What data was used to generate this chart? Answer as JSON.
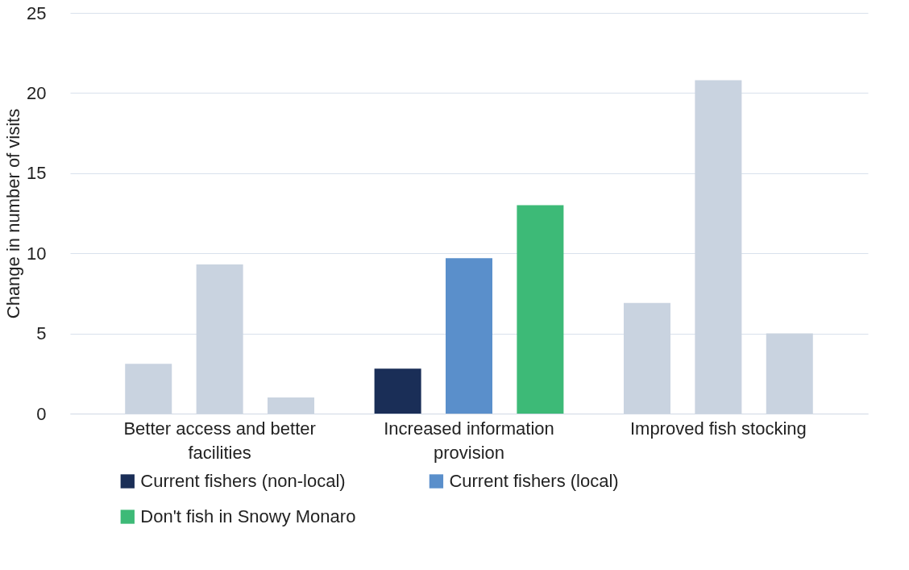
{
  "chart_data": {
    "type": "bar",
    "ylabel": "Change in number of visits",
    "categories": [
      "Better access and better facilities",
      "Increased information provision",
      "Improved fish stocking"
    ],
    "series": [
      {
        "name": "Current fishers (non-local)",
        "color": "#1a2e57",
        "colors": [
          "#c9d3e0",
          "#1a2e57",
          "#c9d3e0"
        ],
        "values": [
          3.1,
          2.8,
          6.9
        ]
      },
      {
        "name": "Current fishers (local)",
        "color": "#5a8fcb",
        "colors": [
          "#c9d3e0",
          "#5a8fcb",
          "#c9d3e0"
        ],
        "values": [
          9.3,
          9.7,
          20.8
        ]
      },
      {
        "name": "Don't fish in Snowy Monaro",
        "color": "#3dba77",
        "colors": [
          "#c9d3e0",
          "#3dba77",
          "#c9d3e0"
        ],
        "values": [
          1.0,
          13.0,
          5.0
        ]
      }
    ],
    "ylim": [
      0,
      25
    ],
    "yticks": [
      0,
      5,
      10,
      15,
      20,
      25
    ],
    "grid": "y",
    "legend": "bottom"
  }
}
